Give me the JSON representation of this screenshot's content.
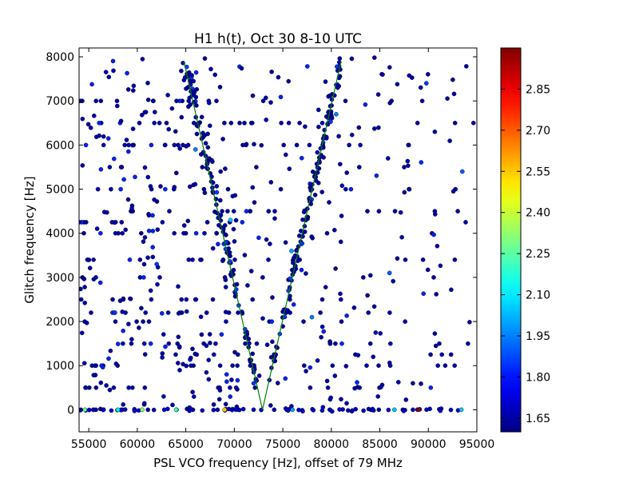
{
  "chart_data": {
    "type": "scatter",
    "title": "H1 h(t), Oct 30 8-10 UTC",
    "xlabel": "PSL VCO frequency [Hz], offset of 79 MHz",
    "ylabel": "Glitch frequency [Hz]",
    "xlim": [
      54000,
      95000
    ],
    "ylim": [
      -500,
      8200
    ],
    "xticks": [
      55000,
      60000,
      65000,
      70000,
      75000,
      80000,
      85000,
      90000,
      95000
    ],
    "xtick_labels": [
      "55000",
      "60000",
      "65000",
      "70000",
      "75000",
      "80000",
      "85000",
      "90000",
      "95000"
    ],
    "yticks": [
      0,
      1000,
      2000,
      3000,
      4000,
      5000,
      6000,
      7000,
      8000
    ],
    "ytick_labels": [
      "0",
      "1000",
      "2000",
      "3000",
      "4000",
      "5000",
      "6000",
      "7000",
      "8000"
    ],
    "colorbar": {
      "colormap": "jet",
      "range": [
        1.6,
        3.0
      ],
      "ticks": [
        1.65,
        1.8,
        1.95,
        2.1,
        2.25,
        2.4,
        2.55,
        2.7,
        2.85
      ],
      "tick_labels": [
        "1.65",
        "1.80",
        "1.95",
        "2.10",
        "2.25",
        "2.40",
        "2.55",
        "2.70",
        "2.85"
      ]
    },
    "fit_line": {
      "color": "#008000",
      "points": [
        [
          64800,
          7900
        ],
        [
          72900,
          0
        ],
        [
          81000,
          7900
        ]
      ]
    },
    "v_band": {
      "left_arm": [
        [
          65000,
          7900
        ],
        [
          72900,
          0
        ]
      ],
      "right_arm": [
        [
          72900,
          0
        ],
        [
          81000,
          7900
        ]
      ],
      "count_per_arm": 130,
      "jitter_hz": 250,
      "value": 1.66
    },
    "background_cloud": {
      "count": 600,
      "x_range": [
        54000,
        95000
      ],
      "density_profile": [
        [
          54000,
          1.0
        ],
        [
          68000,
          1.0
        ],
        [
          75000,
          0.55
        ],
        [
          85000,
          0.4
        ],
        [
          95000,
          0.35
        ]
      ],
      "y_levels": [
        0,
        500,
        1000,
        1250,
        1500,
        2000,
        2200,
        2500,
        3000,
        3400,
        4000,
        4250,
        4500,
        5000,
        5500,
        6000,
        6500,
        7000
      ],
      "value_default": 1.66,
      "value_blue": 1.82,
      "value_blue_fraction": 0.12
    },
    "bottom_row": {
      "y": 0,
      "count": 70,
      "value": 1.7
    },
    "highlight_points": [
      {
        "x": 54600,
        "y": 0,
        "v": 2.25
      },
      {
        "x": 58000,
        "y": 0,
        "v": 2.1
      },
      {
        "x": 60500,
        "y": 0,
        "v": 2.3
      },
      {
        "x": 64000,
        "y": 0,
        "v": 2.2
      },
      {
        "x": 69000,
        "y": 0,
        "v": 2.55
      },
      {
        "x": 76000,
        "y": 0,
        "v": 2.0
      },
      {
        "x": 86500,
        "y": 0,
        "v": 2.05
      },
      {
        "x": 89000,
        "y": 0,
        "v": 2.98
      },
      {
        "x": 93400,
        "y": 0,
        "v": 2.05
      },
      {
        "x": 66000,
        "y": 5900,
        "v": 1.95
      },
      {
        "x": 69600,
        "y": 4300,
        "v": 2.05
      },
      {
        "x": 75900,
        "y": 3600,
        "v": 2.0
      },
      {
        "x": 80500,
        "y": 6700,
        "v": 1.95
      },
      {
        "x": 57700,
        "y": 2200,
        "v": 1.85
      },
      {
        "x": 86000,
        "y": 3100,
        "v": 1.9
      },
      {
        "x": 89800,
        "y": 7400,
        "v": 1.85
      },
      {
        "x": 93500,
        "y": 5400,
        "v": 1.9
      },
      {
        "x": 62000,
        "y": 3300,
        "v": 1.85
      },
      {
        "x": 72000,
        "y": 600,
        "v": 1.85
      },
      {
        "x": 78000,
        "y": 2100,
        "v": 1.95
      }
    ],
    "grid": false
  }
}
